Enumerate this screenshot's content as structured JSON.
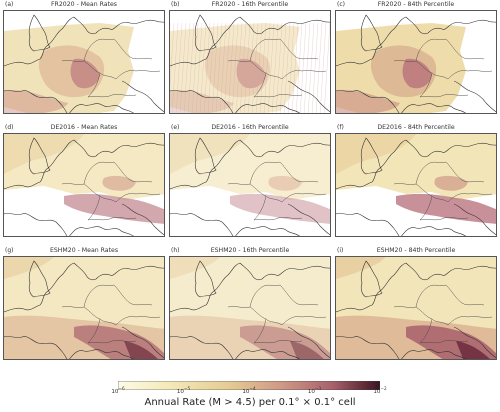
{
  "panels": [
    {
      "letter": "(a)",
      "title": "FR2020 - Mean Rates",
      "model": "FR2020",
      "variant": "mean"
    },
    {
      "letter": "(b)",
      "title": "FR2020 - 16th Percentile",
      "model": "FR2020",
      "variant": "p16"
    },
    {
      "letter": "(c)",
      "title": "FR2020 - 84th Percentile",
      "model": "FR2020",
      "variant": "p84"
    },
    {
      "letter": "(d)",
      "title": "DE2016 - Mean Rates",
      "model": "DE2016",
      "variant": "mean"
    },
    {
      "letter": "(e)",
      "title": "DE2016 - 16th Percentile",
      "model": "DE2016",
      "variant": "p16"
    },
    {
      "letter": "(f)",
      "title": "DE2016 - 84th Percentile",
      "model": "DE2016",
      "variant": "p84"
    },
    {
      "letter": "(g)",
      "title": "ESHM20 - Mean Rates",
      "model": "ESHM20",
      "variant": "mean"
    },
    {
      "letter": "(h)",
      "title": "ESHM20 - 16th Percentile",
      "model": "ESHM20",
      "variant": "p16"
    },
    {
      "letter": "(i)",
      "title": "ESHM20 - 84th Percentile",
      "model": "ESHM20",
      "variant": "p84"
    }
  ],
  "colorbar": {
    "label": "Annual Rate (M > 4.5) per 0.1° × 0.1° cell",
    "ticks": [
      {
        "base": "10",
        "exp": "−6"
      },
      {
        "base": "10",
        "exp": "−5"
      },
      {
        "base": "10",
        "exp": "−4"
      },
      {
        "base": "10",
        "exp": "−3"
      },
      {
        "base": "10",
        "exp": "−2"
      }
    ],
    "scale": "log",
    "range": [
      1e-06,
      0.01
    ],
    "colors": [
      "#fdfbe6",
      "#f3e9b8",
      "#e6cc95",
      "#cf9a86",
      "#a8606b",
      "#5a2030"
    ]
  }
}
